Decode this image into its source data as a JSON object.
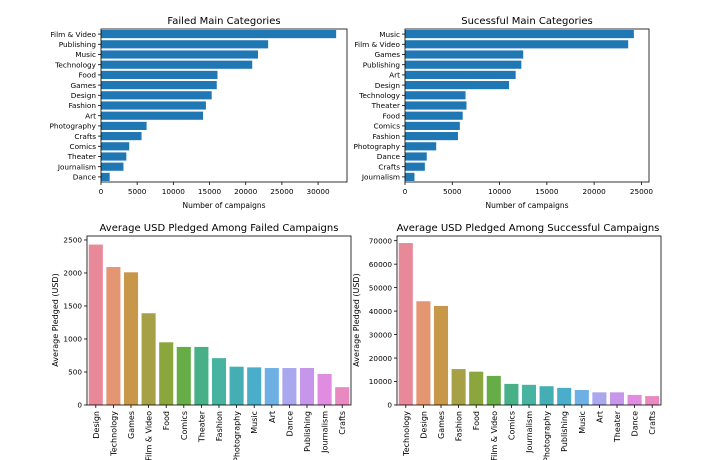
{
  "chart_data": [
    {
      "type": "bar",
      "orientation": "horizontal",
      "title": "Failed Main Categories",
      "xlabel": "Number of campaigns",
      "ylabel": "",
      "xlim": [
        0,
        34000
      ],
      "xticks": [
        0,
        5000,
        10000,
        15000,
        20000,
        25000,
        30000
      ],
      "bar_color": "#1f77b4",
      "categories": [
        "Film & Video",
        "Publishing",
        "Music",
        "Technology",
        "Food",
        "Games",
        "Design",
        "Fashion",
        "Art",
        "Photography",
        "Crafts",
        "Comics",
        "Theater",
        "Journalism",
        "Dance"
      ],
      "values": [
        32500,
        23100,
        21700,
        20900,
        16100,
        16000,
        15300,
        14500,
        14100,
        6300,
        5600,
        3900,
        3500,
        3100,
        1200
      ]
    },
    {
      "type": "bar",
      "orientation": "horizontal",
      "title": "Sucessful  Main Categories",
      "xlabel": "Number of campaigns",
      "ylabel": "",
      "xlim": [
        0,
        25800
      ],
      "xticks": [
        0,
        5000,
        10000,
        15000,
        20000,
        25000
      ],
      "bar_color": "#1f77b4",
      "categories": [
        "Music",
        "Film & Video",
        "Games",
        "Publishing",
        "Art",
        "Design",
        "Technology",
        "Theater",
        "Food",
        "Comics",
        "Fashion",
        "Photography",
        "Dance",
        "Crafts",
        "Journalism"
      ],
      "values": [
        24200,
        23600,
        12500,
        12300,
        11700,
        11000,
        6400,
        6500,
        6100,
        5800,
        5600,
        3300,
        2300,
        2100,
        1000
      ]
    },
    {
      "type": "bar",
      "orientation": "vertical",
      "title": "Average USD Pledged Among Failed Campaigns",
      "xlabel": "",
      "ylabel": "Average Pledged (USD)",
      "ylim": [
        0,
        2560
      ],
      "yticks": [
        0,
        500,
        1000,
        1500,
        2000,
        2500
      ],
      "categories": [
        "Design",
        "Technology",
        "Games",
        "Film & Video",
        "Food",
        "Comics",
        "Theater",
        "Fashion",
        "Photography",
        "Music",
        "Art",
        "Dance",
        "Publishing",
        "Journalism",
        "Crafts"
      ],
      "values": [
        2430,
        2090,
        2010,
        1390,
        950,
        880,
        880,
        710,
        580,
        570,
        560,
        560,
        560,
        470,
        270
      ],
      "colors": [
        "#e8899a",
        "#e49673",
        "#c8974a",
        "#a6a147",
        "#8ca63e",
        "#66ad47",
        "#47b089",
        "#47b3a0",
        "#45aeb4",
        "#4aaecb",
        "#6fb0e4",
        "#aaa7ee",
        "#c596ea",
        "#e08ce0",
        "#e88ac0"
      ]
    },
    {
      "type": "bar",
      "orientation": "vertical",
      "title": "Average USD Pledged Among Successful Campaigns",
      "xlabel": "",
      "ylabel": "Average Pledged (USD)",
      "ylim": [
        0,
        72000
      ],
      "yticks": [
        0,
        10000,
        20000,
        30000,
        40000,
        50000,
        60000,
        70000
      ],
      "categories": [
        "Technology",
        "Design",
        "Games",
        "Fashion",
        "Food",
        "Film & Video",
        "Comics",
        "Journalism",
        "Photography",
        "Publishing",
        "Music",
        "Art",
        "Theater",
        "Dance",
        "Crafts"
      ],
      "values": [
        69000,
        44200,
        42200,
        15300,
        14200,
        12400,
        9000,
        8600,
        8000,
        7300,
        6400,
        5400,
        5400,
        4300,
        3800
      ],
      "colors": [
        "#e8899a",
        "#e49673",
        "#c8974a",
        "#a6a147",
        "#8ca63e",
        "#66ad47",
        "#47b089",
        "#47b3a0",
        "#45aeb4",
        "#4aaecb",
        "#6fb0e4",
        "#aaa7ee",
        "#c596ea",
        "#e08ce0",
        "#e88ac0"
      ]
    }
  ]
}
